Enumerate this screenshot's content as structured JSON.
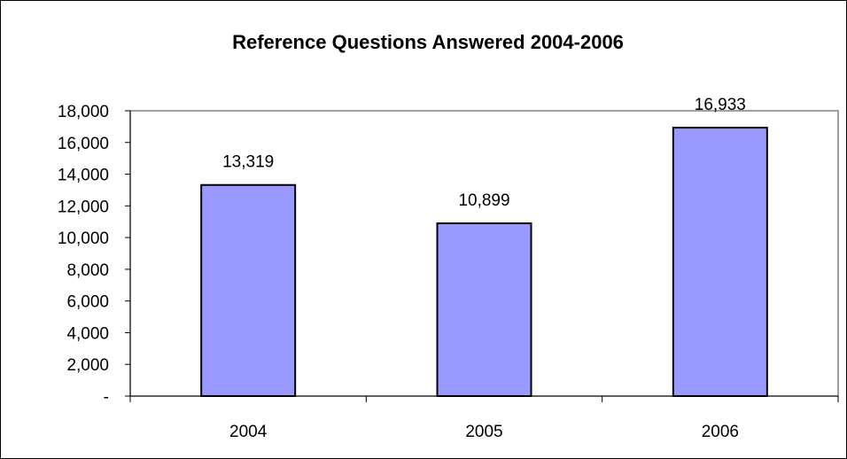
{
  "chart_data": {
    "type": "bar",
    "title": "Reference Questions Answered 2004-2006",
    "xlabel": "",
    "ylabel": "",
    "categories": [
      "2004",
      "2005",
      "2006"
    ],
    "values": [
      13319,
      10899,
      16933
    ],
    "data_labels": [
      "13,319",
      "10,899",
      "16,933"
    ],
    "ylim": [
      0,
      18000
    ],
    "y_ticks": [
      0,
      2000,
      4000,
      6000,
      8000,
      10000,
      12000,
      14000,
      16000,
      18000
    ],
    "y_tick_labels": [
      "-",
      "2,000",
      "4,000",
      "6,000",
      "8,000",
      "10,000",
      "12,000",
      "14,000",
      "16,000",
      "18,000"
    ],
    "grid": false,
    "legend": "none",
    "colors": {
      "bar_fill": "#9999ff",
      "bar_stroke": "#000000",
      "plot_border": "#808080",
      "axis": "#000000",
      "outer_border": "#000000"
    }
  }
}
